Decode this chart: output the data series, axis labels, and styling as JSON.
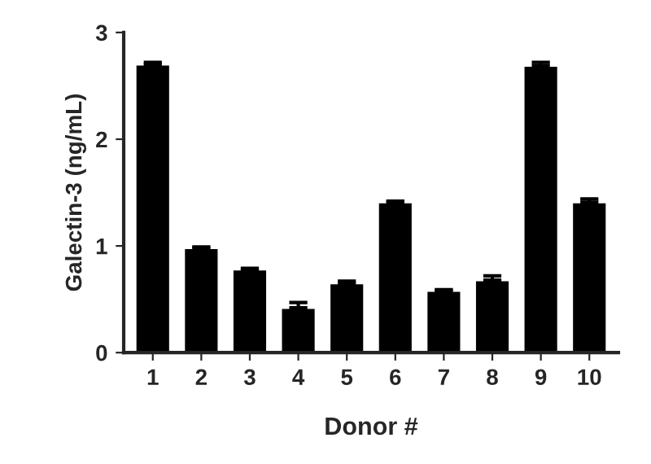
{
  "chart_data": {
    "type": "bar",
    "xlabel": "Donor #",
    "ylabel": "Galectin-3 (ng/mL)",
    "categories": [
      "1",
      "2",
      "3",
      "4",
      "5",
      "6",
      "7",
      "8",
      "9",
      "10"
    ],
    "values": [
      2.7,
      0.98,
      0.78,
      0.42,
      0.65,
      1.41,
      0.58,
      0.68,
      2.69,
      1.41
    ],
    "errors": [
      0.02,
      0.01,
      0.01,
      0.05,
      0.02,
      0.01,
      0.01,
      0.04,
      0.03,
      0.03
    ],
    "color": "#000000",
    "ylim": [
      0,
      3
    ],
    "yticks": [
      0,
      1,
      2,
      3
    ],
    "grid": false,
    "legend": false
  }
}
